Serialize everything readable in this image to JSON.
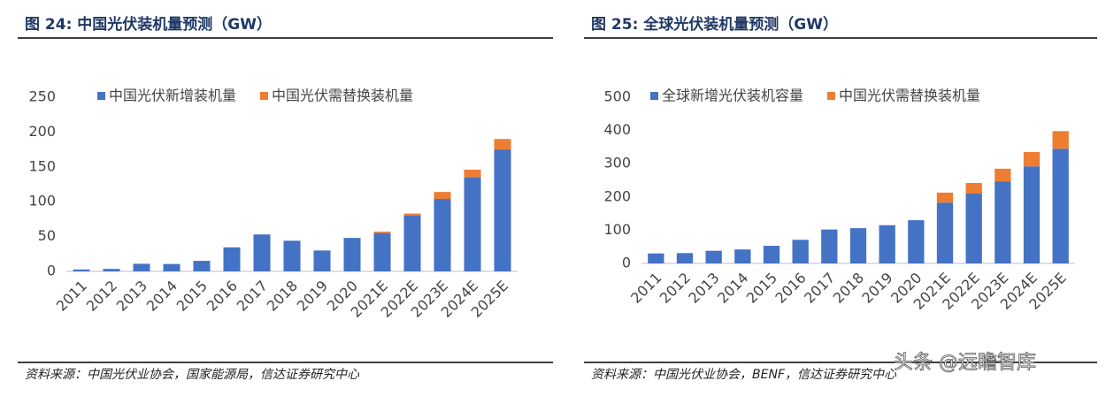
{
  "chart_data": [
    {
      "type": "bar",
      "stacked": true,
      "title": "图 24:  中国光伏装机量预测（GW）",
      "source": "资料来源：中国光伏业协会，国家能源局，信达证券研究中心",
      "categories": [
        "2011",
        "2012",
        "2013",
        "2014",
        "2015",
        "2016",
        "2017",
        "2018",
        "2019",
        "2020",
        "2021E",
        "2022E",
        "2023E",
        "2024E",
        "2025E"
      ],
      "series": [
        {
          "name": "中国光伏新增装机量",
          "color": "#4472c4",
          "values": [
            2.7,
            3.5,
            10.9,
            10.6,
            15.1,
            34.5,
            53,
            44,
            30,
            48,
            55,
            80,
            104,
            135,
            175
          ]
        },
        {
          "name": "中国光伏需替换装机量",
          "color": "#ed7d31",
          "values": [
            null,
            null,
            null,
            null,
            null,
            null,
            null,
            null,
            null,
            null,
            2,
            3,
            10,
            11,
            15
          ]
        }
      ],
      "ylim": [
        0,
        250
      ],
      "yticks": [
        0,
        50,
        100,
        150,
        200,
        250
      ]
    },
    {
      "type": "bar",
      "stacked": true,
      "title": "图 25:  全球光伏装机量预测（GW）",
      "source": "资料来源：中国光伏业协会，BENF，信达证券研究中心",
      "categories": [
        "2011",
        "2012",
        "2013",
        "2014",
        "2015",
        "2016",
        "2017",
        "2018",
        "2019",
        "2020",
        "2021E",
        "2022E",
        "2023E",
        "2024E",
        "2025E"
      ],
      "series": [
        {
          "name": "全球新增光伏装机容量",
          "color": "#4472c4",
          "values": [
            30,
            31,
            38,
            42,
            53,
            71,
            102,
            106,
            115,
            130,
            183,
            210,
            247,
            292,
            345
          ]
        },
        {
          "name": "中国光伏需替换装机量",
          "color": "#ed7d31",
          "values": [
            null,
            null,
            null,
            null,
            null,
            null,
            null,
            null,
            null,
            null,
            30,
            32,
            38,
            43,
            53
          ]
        }
      ],
      "ylim": [
        0,
        500
      ],
      "yticks": [
        0,
        100,
        200,
        300,
        400,
        500
      ]
    }
  ],
  "watermark": "头条 @远瞻智库"
}
